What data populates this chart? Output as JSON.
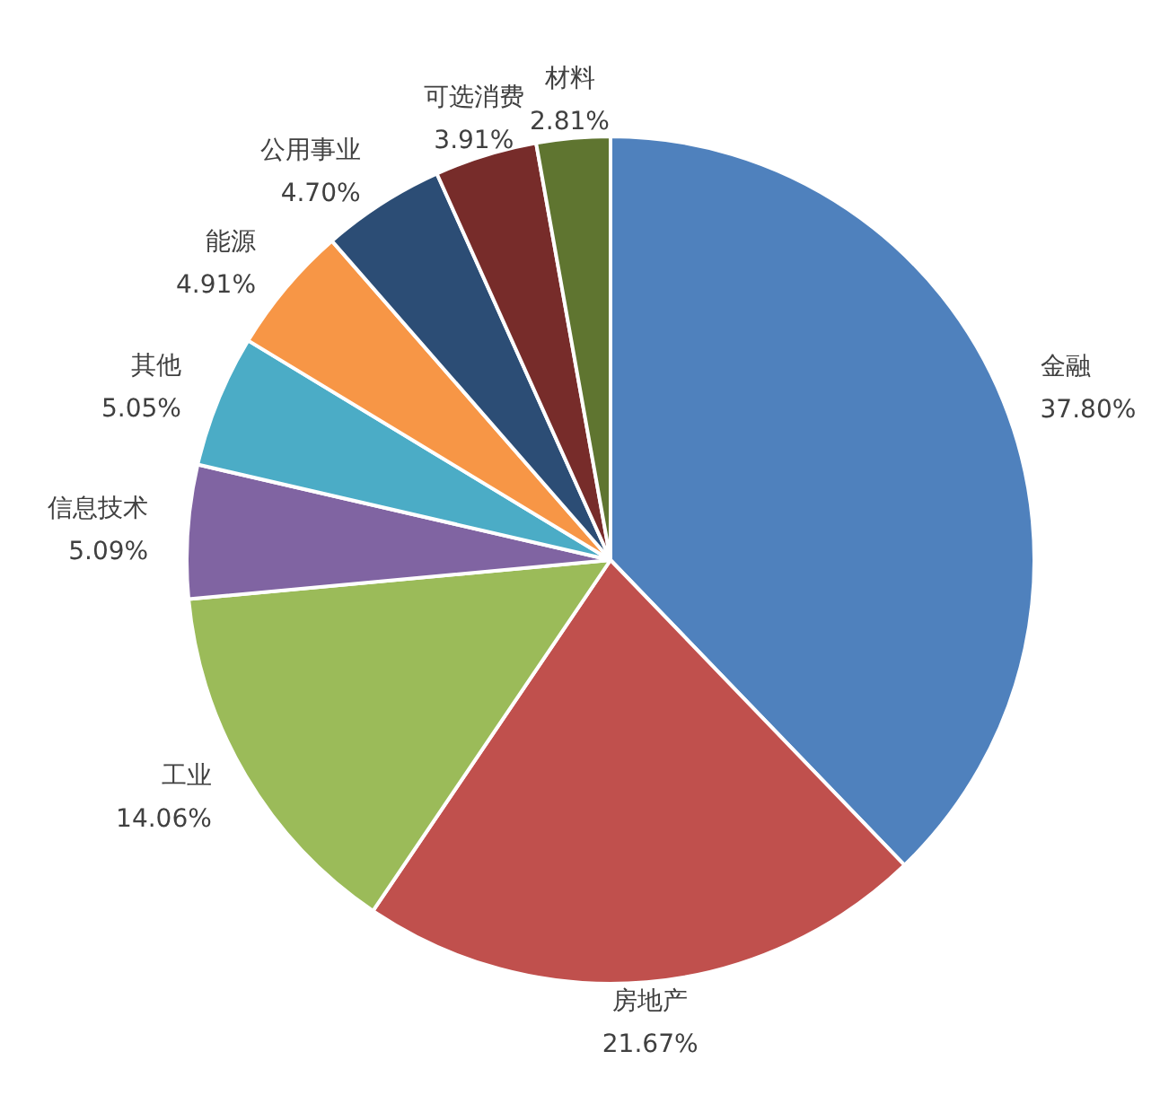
{
  "chart_data": {
    "type": "pie",
    "categories": [
      "金融",
      "房地产",
      "工业",
      "信息技术",
      "其他",
      "能源",
      "公用事业",
      "可选消费",
      "材料"
    ],
    "values": [
      37.8,
      21.67,
      14.06,
      5.09,
      5.05,
      4.91,
      4.7,
      3.91,
      2.81
    ],
    "value_labels": [
      "37.80%",
      "21.67%",
      "14.06%",
      "5.09%",
      "5.05%",
      "4.91%",
      "4.70%",
      "3.91%",
      "2.81%"
    ],
    "colors": [
      "#4f81bd",
      "#c0504d",
      "#9bbb59",
      "#8064a2",
      "#4bacc6",
      "#f79646",
      "#2c4d75",
      "#772c2a",
      "#5f7530"
    ]
  }
}
